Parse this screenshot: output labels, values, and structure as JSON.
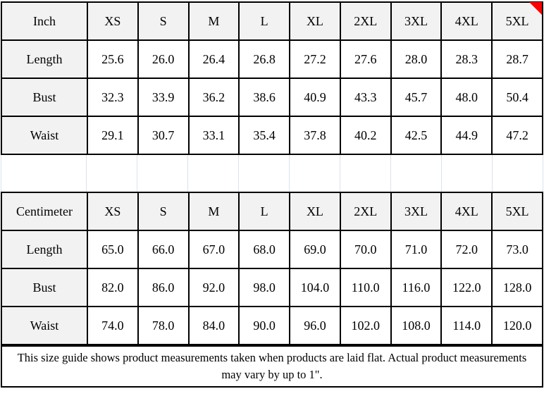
{
  "colors": {
    "header_cell_bg": "#f2f2f2",
    "value_cell_bg": "#ffffff",
    "table_border": "#000000",
    "spacer_gridline": "#dbe2ec",
    "corner_marker": "#fe0000"
  },
  "tables": [
    {
      "name": "inch",
      "header": [
        "Inch",
        "XS",
        "S",
        "M",
        "L",
        "XL",
        "2XL",
        "3XL",
        "4XL",
        "5XL"
      ],
      "rows": [
        {
          "label": "Length",
          "values": [
            "25.6",
            "26.0",
            "26.4",
            "26.8",
            "27.2",
            "27.6",
            "28.0",
            "28.3",
            "28.7"
          ]
        },
        {
          "label": "Bust",
          "values": [
            "32.3",
            "33.9",
            "36.2",
            "38.6",
            "40.9",
            "43.3",
            "45.7",
            "48.0",
            "50.4"
          ]
        },
        {
          "label": "Waist",
          "values": [
            "29.1",
            "30.7",
            "33.1",
            "35.4",
            "37.8",
            "40.2",
            "42.5",
            "44.9",
            "47.2"
          ]
        }
      ]
    },
    {
      "name": "centimeter",
      "header": [
        "Centimeter",
        "XS",
        "S",
        "M",
        "L",
        "XL",
        "2XL",
        "3XL",
        "4XL",
        "5XL"
      ],
      "rows": [
        {
          "label": "Length",
          "values": [
            "65.0",
            "66.0",
            "67.0",
            "68.0",
            "69.0",
            "70.0",
            "71.0",
            "72.0",
            "73.0"
          ]
        },
        {
          "label": "Bust",
          "values": [
            "82.0",
            "86.0",
            "92.0",
            "98.0",
            "104.0",
            "110.0",
            "116.0",
            "122.0",
            "128.0"
          ]
        },
        {
          "label": "Waist",
          "values": [
            "74.0",
            "78.0",
            "84.0",
            "90.0",
            "96.0",
            "102.0",
            "108.0",
            "114.0",
            "120.0"
          ]
        }
      ]
    }
  ],
  "footer": {
    "note": "This size guide shows product measurements taken when products are laid flat. Actual product measurements may vary by up to 1\"."
  }
}
